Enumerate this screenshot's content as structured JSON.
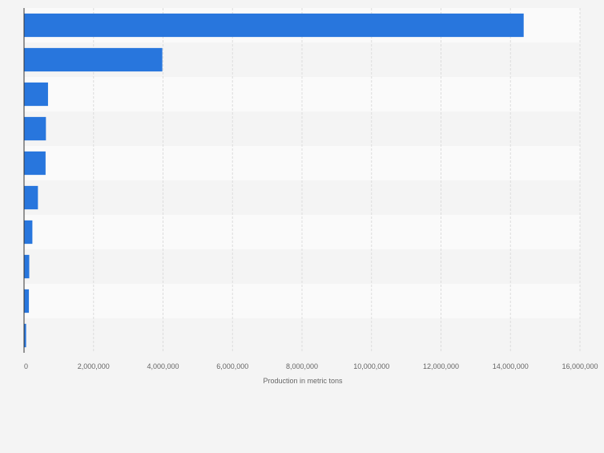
{
  "chart_data": {
    "type": "bar",
    "orientation": "horizontal",
    "categories": [
      "",
      "",
      "",
      "",
      "",
      "",
      "",
      "",
      "",
      ""
    ],
    "values": [
      14380000,
      3980000,
      690000,
      630000,
      620000,
      400000,
      240000,
      150000,
      140000,
      60000
    ],
    "xlabel": "Production in metric tons",
    "ylabel": "",
    "xlim": [
      0,
      16000000
    ],
    "x_ticks": [
      0,
      2000000,
      4000000,
      6000000,
      8000000,
      10000000,
      12000000,
      14000000,
      16000000
    ],
    "x_tick_labels": [
      "0",
      "2,000,000",
      "4,000,000",
      "6,000,000",
      "8,000,000",
      "10,000,000",
      "12,000,000",
      "14,000,000",
      "16,000,000"
    ],
    "grid": true,
    "legend": "none"
  },
  "colors": {
    "bar": "#2876dd",
    "band_light": "#fafafa",
    "band_dark": "#f4f4f4",
    "grid": "#dcdcdc",
    "axis": "#333333"
  }
}
